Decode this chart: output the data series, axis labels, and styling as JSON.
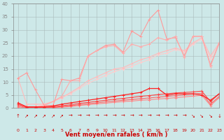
{
  "x": [
    0,
    1,
    2,
    3,
    4,
    5,
    6,
    7,
    8,
    9,
    10,
    11,
    12,
    13,
    14,
    15,
    16,
    17,
    18,
    19,
    20,
    21,
    22,
    23
  ],
  "line_top_jagged": [
    11.5,
    13.5,
    7.0,
    1.0,
    1.0,
    11.0,
    10.5,
    11.5,
    20.0,
    22.0,
    24.0,
    24.5,
    21.5,
    29.5,
    27.5,
    34.0,
    37.5,
    26.5,
    27.0,
    20.0,
    27.5,
    27.5,
    16.5,
    25.0
  ],
  "line_mid_jagged": [
    1.5,
    0.5,
    0.3,
    1.0,
    2.5,
    4.5,
    10.5,
    10.5,
    20.0,
    22.0,
    23.5,
    24.0,
    21.0,
    24.5,
    23.5,
    24.5,
    27.0,
    26.0,
    27.5,
    19.5,
    27.5,
    27.5,
    16.0,
    25.0
  ],
  "line_linear1": [
    11.5,
    1.5,
    1.5,
    1.5,
    2.5,
    4.0,
    6.0,
    8.0,
    10.5,
    12.0,
    13.5,
    15.0,
    15.5,
    17.0,
    18.5,
    19.5,
    21.0,
    22.0,
    23.0,
    22.0,
    25.0,
    27.0,
    20.0,
    25.0
  ],
  "line_linear2": [
    1.5,
    0.3,
    0.5,
    1.5,
    2.5,
    4.0,
    5.5,
    7.5,
    9.5,
    11.0,
    12.5,
    14.0,
    15.0,
    16.0,
    17.5,
    18.5,
    20.5,
    21.0,
    22.5,
    21.5,
    24.5,
    26.5,
    19.0,
    24.5
  ],
  "line_bottom1": [
    2.0,
    0.5,
    0.5,
    0.5,
    0.8,
    1.5,
    2.0,
    2.5,
    3.0,
    3.5,
    4.0,
    4.5,
    5.0,
    5.5,
    6.0,
    7.5,
    7.5,
    5.0,
    5.5,
    5.5,
    5.5,
    5.0,
    3.0,
    5.5
  ],
  "line_bottom2": [
    1.5,
    0.3,
    0.2,
    0.3,
    0.5,
    0.9,
    1.3,
    1.8,
    2.2,
    2.6,
    3.0,
    3.4,
    3.7,
    4.1,
    4.5,
    4.8,
    5.2,
    5.5,
    5.8,
    6.0,
    6.2,
    6.5,
    2.5,
    5.5
  ],
  "line_bottom3": [
    1.0,
    0.1,
    0.1,
    0.2,
    0.3,
    0.6,
    0.9,
    1.3,
    1.7,
    2.0,
    2.4,
    2.7,
    3.0,
    3.3,
    3.6,
    3.9,
    4.2,
    4.5,
    4.8,
    5.1,
    5.4,
    5.7,
    1.5,
    4.5
  ],
  "line_bottom4": [
    0.5,
    0.0,
    0.0,
    0.1,
    0.2,
    0.4,
    0.6,
    1.0,
    1.3,
    1.6,
    1.9,
    2.2,
    2.5,
    2.7,
    3.0,
    3.2,
    3.5,
    3.7,
    4.0,
    4.3,
    4.6,
    4.9,
    1.0,
    4.0
  ],
  "arrow_chars": [
    "↑",
    "↗",
    "↗",
    "↗",
    "↗",
    "↗",
    "→",
    "→",
    "→",
    "→",
    "→",
    "→",
    "→",
    "→",
    "→",
    "→",
    "→",
    "→",
    "→",
    "→",
    "↘",
    "↘",
    "↘",
    "↓"
  ],
  "background_color": "#cde8e8",
  "grid_color": "#aababa",
  "color_top_jagged": "#ff9999",
  "color_mid_jagged": "#ffaaaa",
  "color_linear1": "#ffbbbb",
  "color_linear2": "#ffcccc",
  "color_bottom1": "#ff2222",
  "color_bottom2": "#ff4444",
  "color_bottom3": "#ff6666",
  "color_bottom4": "#ff8888",
  "xlabel": "Vent moyen/en rafales ( km/h )",
  "ylim": [
    0,
    40
  ],
  "xlim": [
    -0.5,
    23
  ],
  "yticks": [
    0,
    5,
    10,
    15,
    20,
    25,
    30,
    35,
    40
  ],
  "xticks": [
    0,
    1,
    2,
    3,
    4,
    5,
    6,
    7,
    8,
    9,
    10,
    11,
    12,
    13,
    14,
    15,
    16,
    17,
    18,
    19,
    20,
    21,
    22,
    23
  ]
}
